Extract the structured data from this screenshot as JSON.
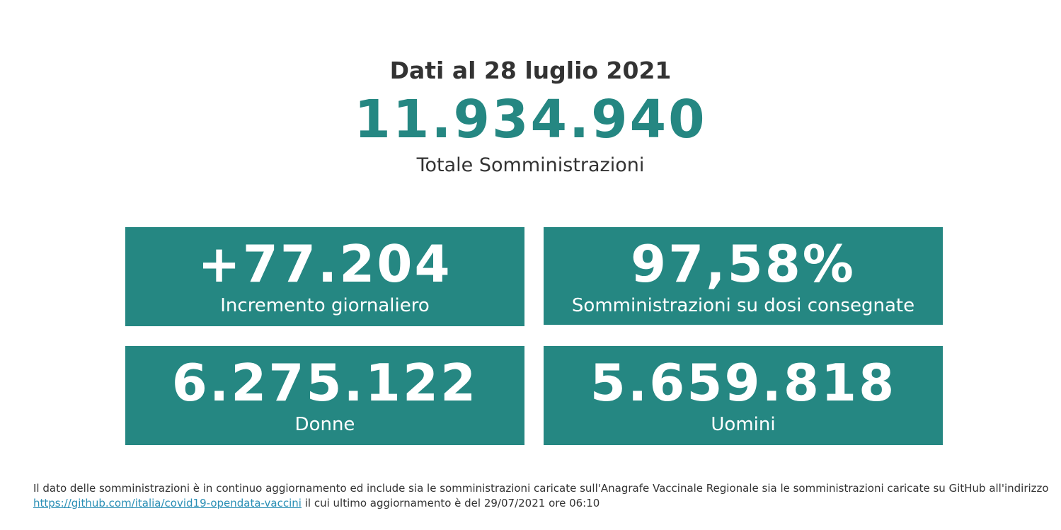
{
  "header": {
    "date_title": "Dati al 28 luglio 2021",
    "total_value": "11.934.940",
    "total_label": "Totale Somministrazioni"
  },
  "cards": {
    "daily": {
      "value": "+77.204",
      "label": "Incremento giornaliero"
    },
    "percent": {
      "value": "97,58%",
      "label": "Somministrazioni su dosi consegnate"
    },
    "women": {
      "value": "6.275.122",
      "label": "Donne"
    },
    "men": {
      "value": "5.659.818",
      "label": "Uomini"
    }
  },
  "footnote": {
    "text_before": "Il dato delle somministrazioni è in continuo aggiornamento ed include sia le somministrazioni caricate sull'Anagrafe Vaccinale Regionale sia le somministrazioni caricate su GitHub all'indirizzo ",
    "link_text": "https://github.com/italia/covid19-opendata-vaccini",
    "text_after": " il cui ultimo aggiornamento è del 29/07/2021 ore 06:10"
  },
  "colors": {
    "accent": "#258782",
    "text": "#333333",
    "link": "#2a8fb5"
  }
}
